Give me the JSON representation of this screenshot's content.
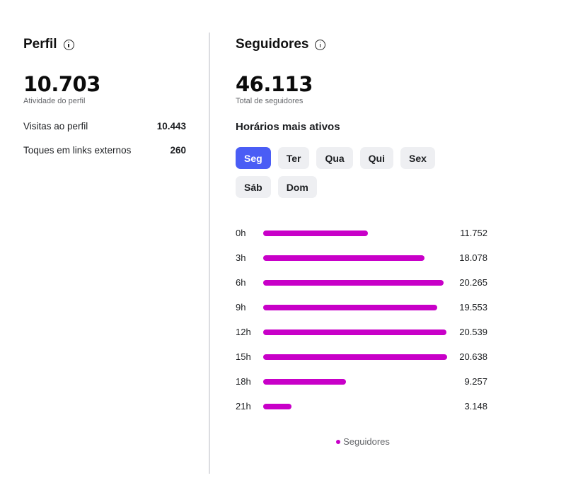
{
  "profile": {
    "title": "Perfil",
    "activity_value": "10.703",
    "activity_label": "Atividade do perfil",
    "metrics": [
      {
        "label": "Visitas ao perfil",
        "value": "10.443"
      },
      {
        "label": "Toques em links externos",
        "value": "260"
      }
    ]
  },
  "followers": {
    "title": "Seguidores",
    "total_value": "46.113",
    "total_label": "Total de seguidores",
    "active_hours_title": "Horários mais ativos",
    "days": [
      "Seg",
      "Ter",
      "Qua",
      "Qui",
      "Sex",
      "Sáb",
      "Dom"
    ],
    "selected_day": "Seg",
    "accent_color": "#4a5df5",
    "bar_color": "#c800c8",
    "legend": "Seguidores"
  },
  "chart_data": {
    "type": "bar",
    "orientation": "horizontal",
    "categories": [
      "0h",
      "3h",
      "6h",
      "9h",
      "12h",
      "15h",
      "18h",
      "21h"
    ],
    "series": [
      {
        "name": "Seguidores",
        "values": [
          11752,
          18078,
          20265,
          19553,
          20539,
          20638,
          9257,
          3148
        ],
        "labels": [
          "11.752",
          "18.078",
          "20.265",
          "19.553",
          "20.539",
          "20.638",
          "9.257",
          "3.148"
        ]
      }
    ],
    "legend_position": "bottom",
    "grid": false
  }
}
